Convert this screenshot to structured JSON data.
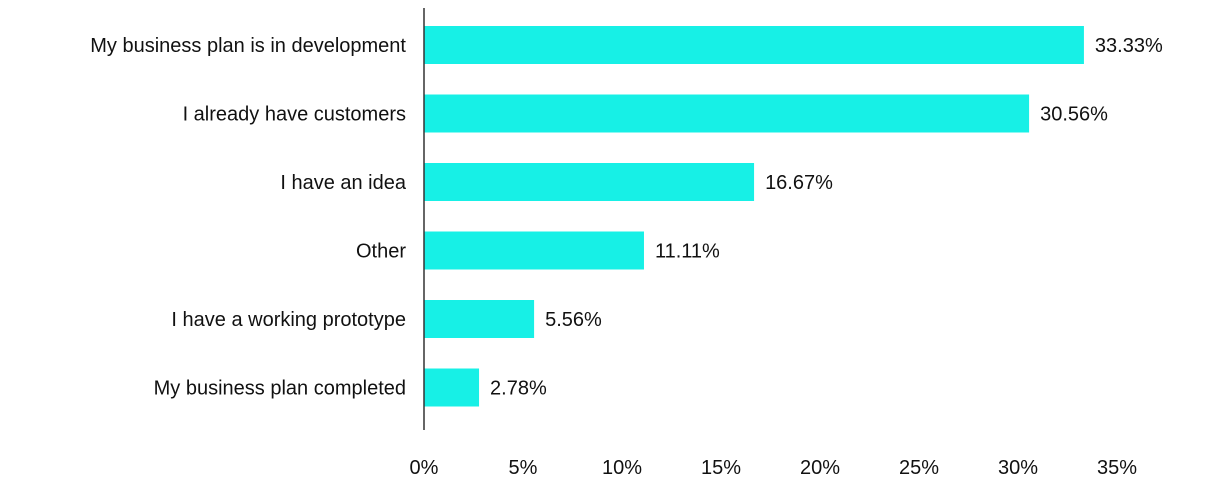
{
  "chart_data": {
    "type": "bar",
    "orientation": "horizontal",
    "categories": [
      "My business plan is in development",
      "I already have customers",
      "I have an idea",
      "Other",
      "I have a working prototype",
      "My business plan completed"
    ],
    "values": [
      33.33,
      30.56,
      16.67,
      11.11,
      5.56,
      2.78
    ],
    "data_labels": [
      "33.33%",
      "30.56%",
      "16.67%",
      "11.11%",
      "5.56%",
      "2.78%"
    ],
    "x_ticks": [
      0,
      5,
      10,
      15,
      20,
      25,
      30,
      35
    ],
    "x_tick_labels": [
      "0%",
      "5%",
      "10%",
      "15%",
      "20%",
      "25%",
      "30%",
      "35%"
    ],
    "xlim": [
      0,
      35
    ],
    "title": "",
    "xlabel": "",
    "ylabel": "",
    "grid": false,
    "legend": "none",
    "bar_color": "#17F0E6",
    "axis_color": "#333333",
    "text_color": "#111111"
  }
}
